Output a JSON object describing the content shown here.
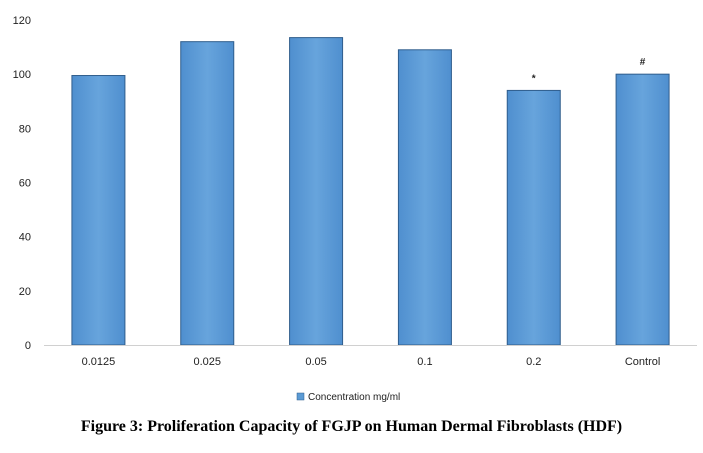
{
  "caption": "Figure 3: Proliferation Capacity of FGJP on Human Dermal Fibroblasts (HDF)",
  "chart_data": {
    "type": "bar",
    "title": "",
    "xlabel": "",
    "ylabel": "",
    "categories": [
      "0.0125",
      "0.025",
      "0.05",
      "0.1",
      "0.2",
      "Control"
    ],
    "series": [
      {
        "name": "Concentration mg/ml",
        "values": [
          99.5,
          112,
          113.5,
          109,
          94,
          100
        ],
        "color": "#5b9bd5"
      }
    ],
    "annotations": [
      "",
      "",
      "",
      "",
      "*",
      "#"
    ],
    "ylim": [
      0,
      120
    ],
    "yticks": [
      "0",
      "20",
      "40",
      "60",
      "80",
      "100",
      "120"
    ],
    "grid": false,
    "legend_position": "bottom"
  }
}
